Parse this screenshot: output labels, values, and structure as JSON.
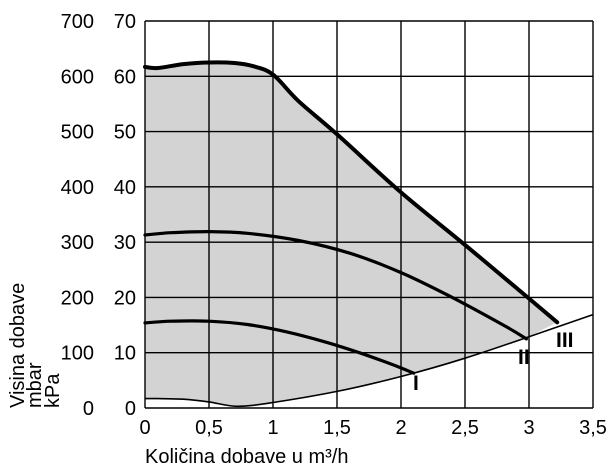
{
  "chart_data": {
    "type": "area",
    "xlabel": "Količina dobave u m³/h",
    "ylabel_left": "Visina dobave mbar",
    "ylabel_left_lines": [
      "Visina dobave",
      "mbar"
    ],
    "ylabel_right": "kPa",
    "x_ticks": [
      "0",
      "0,5",
      "1",
      "1,5",
      "2",
      "2,5",
      "3",
      "3,5"
    ],
    "x_tick_values": [
      0,
      0.5,
      1,
      1.5,
      2,
      2.5,
      3,
      3.5
    ],
    "y_ticks_mbar": [
      "0",
      "100",
      "200",
      "300",
      "400",
      "500",
      "600",
      "700"
    ],
    "y_ticks_kpa": [
      "0",
      "10",
      "20",
      "30",
      "40",
      "50",
      "60",
      "70"
    ],
    "y_tick_values_kpa": [
      0,
      10,
      20,
      30,
      40,
      50,
      60,
      70
    ],
    "xlim": [
      0,
      3.5
    ],
    "ylim_kpa": [
      0,
      70
    ],
    "ylim_mbar": [
      0,
      700
    ],
    "grid": true,
    "fill_color": "#d3d3d3",
    "line_color": "#000000",
    "series": [
      {
        "name": "III",
        "x": [
          0,
          0.1,
          0.3,
          0.5,
          0.7,
          0.85,
          1.0,
          1.2,
          1.5,
          2.0,
          2.5,
          3.0,
          3.22
        ],
        "y": [
          61.7,
          61.5,
          62.2,
          62.5,
          62.4,
          61.8,
          60.3,
          55.5,
          49.5,
          39.0,
          29.5,
          19.8,
          15.5
        ]
      },
      {
        "name": "II",
        "x": [
          0,
          0.2,
          0.5,
          0.8,
          1.2,
          1.6,
          2.0,
          2.4,
          2.8,
          2.98
        ],
        "y": [
          31.3,
          31.7,
          31.9,
          31.6,
          30.3,
          28.0,
          24.5,
          20.0,
          15.0,
          12.5
        ]
      },
      {
        "name": "I",
        "x": [
          0,
          0.2,
          0.5,
          0.8,
          1.1,
          1.4,
          1.7,
          1.95,
          2.1
        ],
        "y": [
          15.4,
          15.7,
          15.7,
          15.1,
          13.8,
          12.0,
          9.8,
          7.7,
          6.3
        ]
      }
    ],
    "lower_boundary": {
      "x": [
        0,
        0.1,
        0.3,
        0.5,
        0.72,
        1.0,
        1.5,
        2.0,
        2.5,
        3.0,
        3.5
      ],
      "y": [
        1.7,
        1.7,
        1.6,
        1.1,
        0.3,
        1.0,
        3.0,
        5.7,
        9.0,
        12.9,
        16.9
      ]
    },
    "curve_labels": [
      "I",
      "II",
      "III"
    ]
  }
}
